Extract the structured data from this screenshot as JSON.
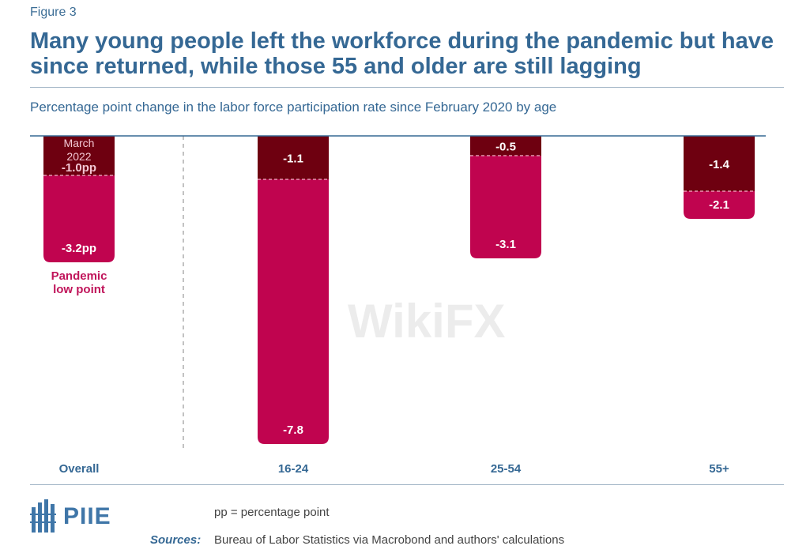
{
  "figure_label": "Figure 3",
  "title": "Many young people left the workforce during the pandemic but have since returned, while those 55 and older are still lagging",
  "subtitle": "Percentage point change in the labor force participation rate since February 2020 by age",
  "footnote": "pp = percentage point",
  "sources_label": "Sources:",
  "sources_text": "Bureau of Labor Statistics via Macrobond and authors' calculations",
  "logo_text": "PIIE",
  "watermark_text": "WikiFX",
  "colors": {
    "title": "#356894",
    "march_2022": "#6e0010",
    "pandemic_low": "#c0044f",
    "annotation_pandemic": "#c0145a",
    "label_text": "#ffffff",
    "axis_line": "#356894"
  },
  "chart_data": {
    "type": "bar",
    "categories": [
      "Overall",
      "16-24",
      "25-54",
      "55+"
    ],
    "series": [
      {
        "name": "March 2022",
        "values": [
          -1.0,
          -1.1,
          -0.5,
          -1.4
        ],
        "labels": [
          "-1.0pp",
          "-1.1",
          "-0.5",
          "-1.4"
        ]
      },
      {
        "name": "Pandemic low point",
        "values": [
          -3.2,
          -7.8,
          -3.1,
          -2.1
        ],
        "labels": [
          "-3.2pp",
          "-7.8",
          "-3.1",
          "-2.1"
        ]
      }
    ],
    "annotations": {
      "march_2022_line1": "March",
      "march_2022_line2": "2022",
      "pandemic_line1": "Pandemic",
      "pandemic_line2": "low point"
    },
    "ylim": [
      -8.0,
      0
    ],
    "xlabel": "",
    "ylabel": "",
    "grid": false,
    "overlapping_bars": true
  }
}
